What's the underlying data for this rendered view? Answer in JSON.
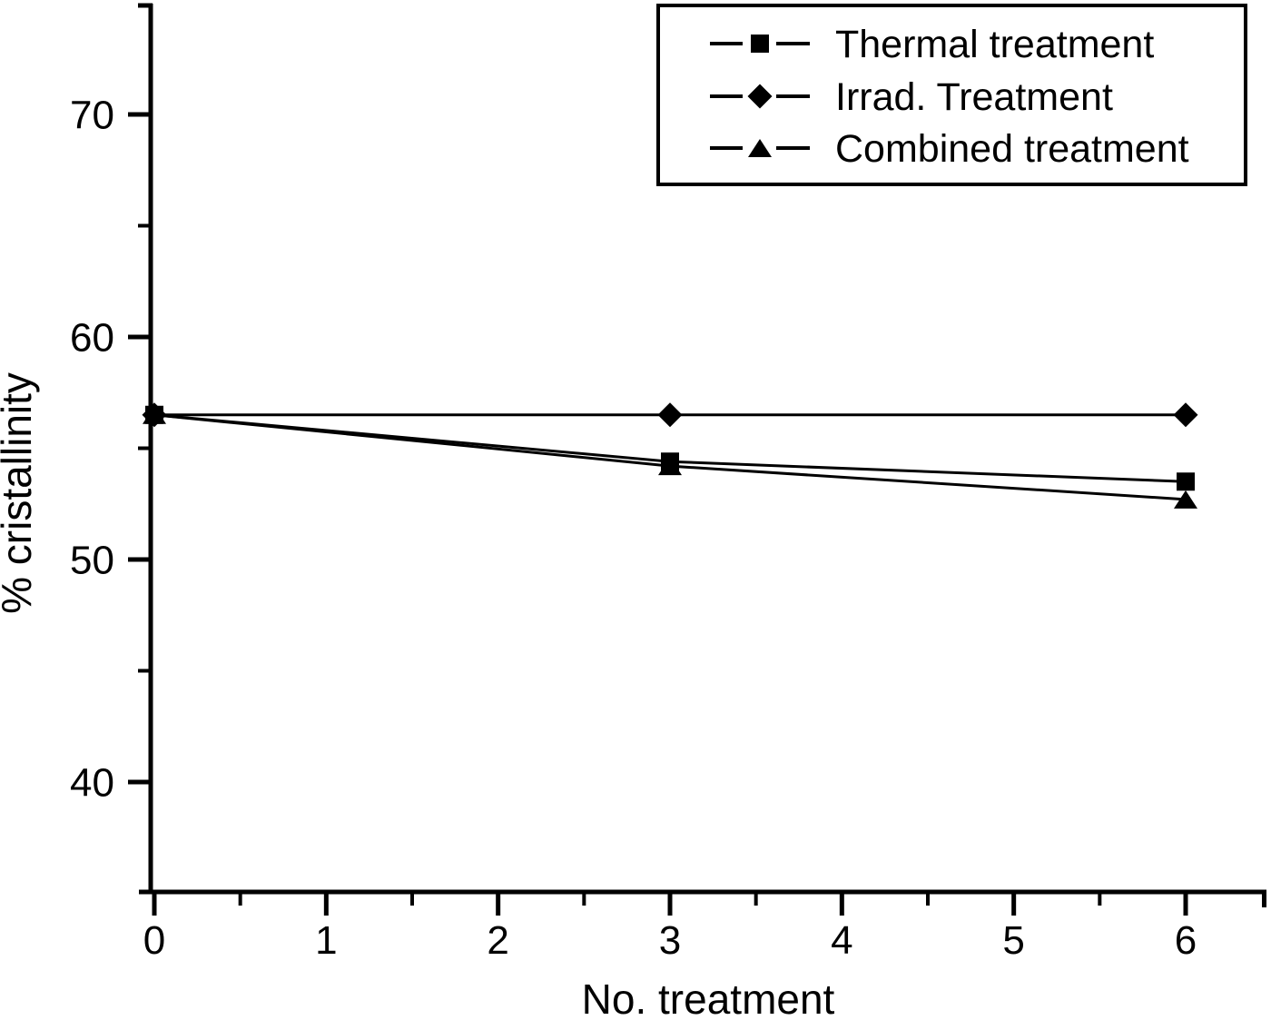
{
  "chart_data": {
    "type": "line",
    "title": "",
    "xlabel": "No. treatment",
    "ylabel": "% cristallinity",
    "x": [
      0,
      3,
      6
    ],
    "series": [
      {
        "name": "Thermal treatment",
        "marker": "square",
        "values": [
          56.5,
          54.4,
          53.5
        ]
      },
      {
        "name": "Irrad. Treatment",
        "marker": "diamond",
        "values": [
          56.5,
          56.5,
          56.5
        ]
      },
      {
        "name": "Combined treatment",
        "marker": "triangle",
        "values": [
          56.5,
          54.2,
          52.7
        ]
      }
    ],
    "xlim": [
      0,
      6.5
    ],
    "ylim": [
      35,
      75
    ],
    "x_major_ticks": [
      0,
      1,
      2,
      3,
      4,
      5,
      6
    ],
    "x_minor_ticks": [
      0.5,
      1.5,
      2.5,
      3.5,
      4.5,
      5.5
    ],
    "y_major_ticks": [
      40,
      50,
      60,
      70
    ],
    "y_minor_ticks": [
      45,
      55,
      65
    ],
    "grid": false,
    "legend_position": "top-right",
    "colors": {
      "foreground": "#000000",
      "background": "#ffffff"
    }
  }
}
